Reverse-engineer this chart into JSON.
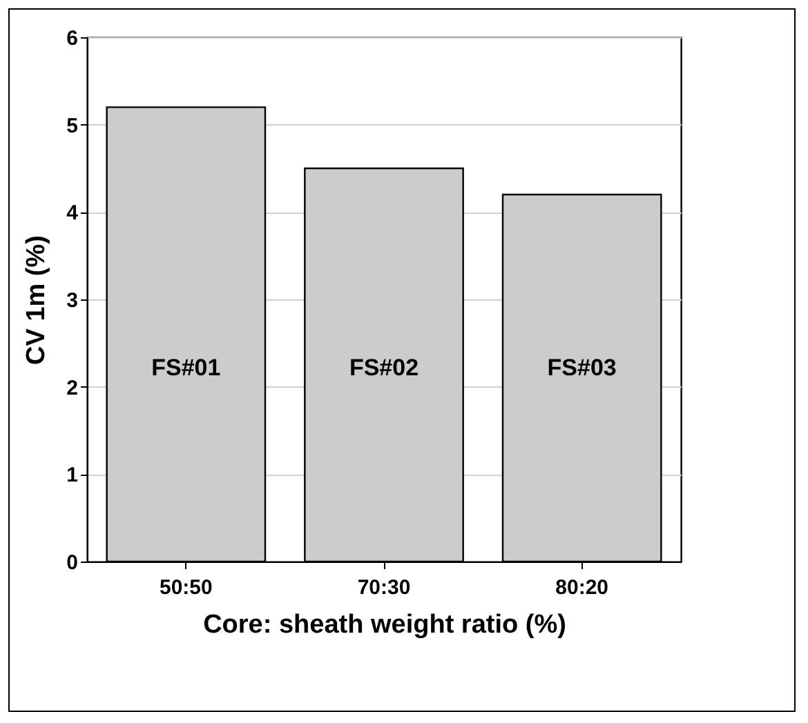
{
  "chart_data": {
    "type": "bar",
    "xlabel": "Core: sheath weight ratio (%)",
    "ylabel": "CV 1m (%)",
    "categories": [
      "50:50",
      "70:30",
      "80:20"
    ],
    "values": [
      5.2,
      4.5,
      4.2
    ],
    "color": "#cccccc",
    "ylim": [
      0,
      6
    ],
    "yticks": [
      0,
      1,
      2,
      3,
      4,
      5,
      6
    ],
    "grid": "y",
    "annotations": [
      "FS#01",
      "FS#02",
      "FS#03"
    ]
  }
}
